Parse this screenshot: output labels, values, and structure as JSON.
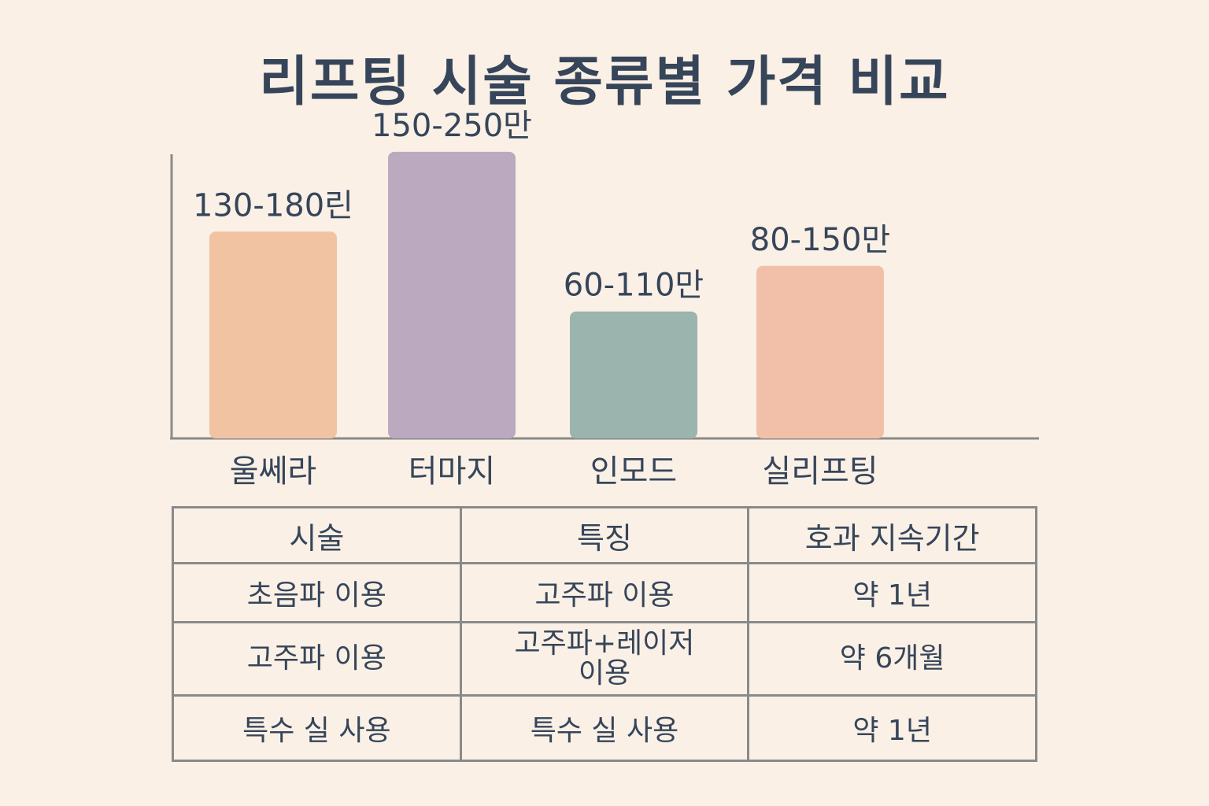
{
  "chart_data": {
    "type": "bar",
    "title": "리프팅 시술 종류별 가격 비교",
    "categories": [
      "울쎄라",
      "터마지",
      "인모드",
      "실리프팅"
    ],
    "values": [
      180,
      250,
      110,
      150
    ],
    "value_labels": [
      "130-180린",
      "150-250만",
      "60-110만",
      "80-150만"
    ],
    "colors": [
      "#f2c3a2",
      "#bba9c0",
      "#9bb4ad",
      "#f2c0a8"
    ],
    "ylim": [
      0,
      290
    ],
    "grid": false,
    "xlabel": "",
    "ylabel": ""
  },
  "table": {
    "headers": [
      "시술",
      "특징",
      "호과 지속기간"
    ],
    "rows": [
      [
        "초음파 이용",
        "고주파 이용",
        "약 1년"
      ],
      [
        "고주파 이용",
        "고주파+레이저\n이용",
        "약 6개월"
      ],
      [
        "특수 실 사용",
        "특수 실 사용",
        "약 1년"
      ]
    ]
  }
}
